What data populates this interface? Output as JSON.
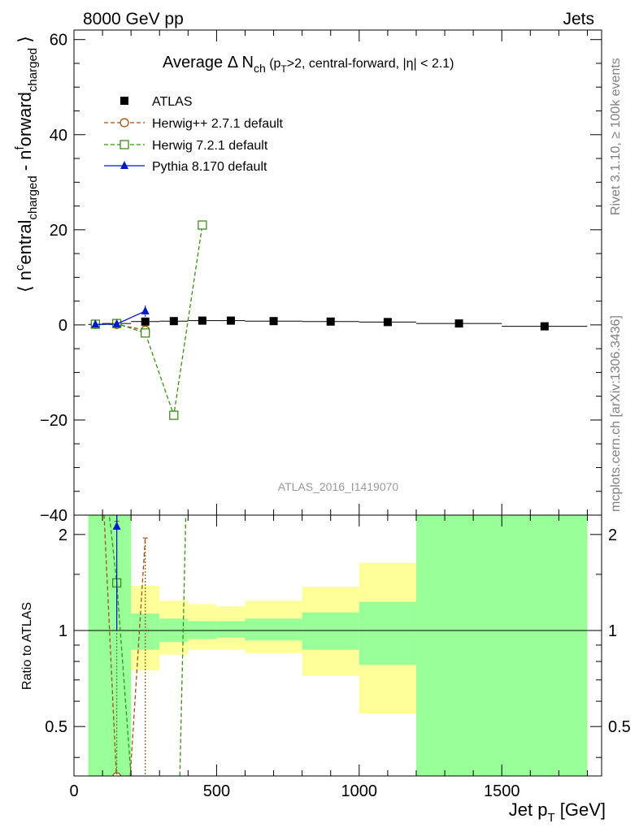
{
  "header": {
    "left": "8000 GeV pp",
    "right": "Jets"
  },
  "side_labels": {
    "rivet": "Rivet 3.1.10, ≥ 100k events",
    "mcplots": "mcplots.cern.ch [arXiv:1306.3436]"
  },
  "watermark": "ATLAS_2016_I1419070",
  "chart_data": [
    {
      "type": "scatter",
      "title": {
        "main": "Average Δ N",
        "main_sub": "ch",
        "cut_pre": " (p",
        "cut_sub": "T",
        "cut_post": ">2, central-forward, |η| < 2.1)"
      },
      "ylabel": {
        "p1": "⟨ n",
        "s1": "c",
        "p2": "entral",
        "s2": "charged",
        "p3": " - n",
        "s3": "f",
        "p4": "orward",
        "s4": "charged",
        "p5": " ⟩"
      },
      "xlim": [
        0,
        1850
      ],
      "ylim": [
        -40,
        62
      ],
      "yticks": [
        -40,
        -20,
        0,
        20,
        40,
        60
      ],
      "ytick_labels": [
        "−40",
        "−20",
        "0",
        "20",
        "40",
        "60"
      ],
      "legend_position": "top-left",
      "series": [
        {
          "name": "ATLAS",
          "color": "#000000",
          "marker": "filled-square",
          "line": "none",
          "x": [
            75,
            150,
            250,
            350,
            450,
            550,
            700,
            900,
            1100,
            1350,
            1650
          ],
          "xerr": [
            25,
            50,
            50,
            50,
            50,
            50,
            100,
            100,
            100,
            150,
            150
          ],
          "y": [
            0.1,
            0.3,
            0.7,
            0.8,
            0.9,
            0.9,
            0.8,
            0.7,
            0.6,
            0.3,
            -0.3
          ],
          "yerr": [
            0.3,
            0.3,
            0.3,
            0.3,
            0.3,
            0.3,
            0.3,
            0.3,
            0.3,
            0.4,
            0.6
          ]
        },
        {
          "name": "Herwig++ 2.7.1 default",
          "color": "#a0520f",
          "marker": "open-circle",
          "line": "dashed",
          "x": [
            75,
            150,
            250
          ],
          "y": [
            0.1,
            0.1,
            -1.1
          ],
          "yerr": [
            0.2,
            0.3,
            0.6
          ]
        },
        {
          "name": "Herwig 7.2.1 default",
          "color": "#3a8f16",
          "marker": "open-square",
          "line": "dashed",
          "x": [
            75,
            150,
            250,
            350,
            450
          ],
          "y": [
            0.15,
            0.3,
            -1.7,
            -19,
            21
          ],
          "yerr": [
            0.2,
            0.3,
            0.5,
            0.6,
            0.6
          ]
        },
        {
          "name": "Pythia 8.170 default",
          "color": "#0018cc",
          "marker": "filled-triangle",
          "line": "solid",
          "x": [
            75,
            150,
            250
          ],
          "y": [
            0.1,
            0.2,
            2.9
          ],
          "yerr": [
            0.2,
            0.3,
            1.2
          ]
        }
      ]
    },
    {
      "type": "line",
      "ylabel": "Ratio to ATLAS",
      "xlabel": {
        "main": "Jet p",
        "sub": "T",
        "post": " [GeV]"
      },
      "xlim": [
        0,
        1850
      ],
      "ylim": [
        0.35,
        2.3
      ],
      "xticks": [
        0,
        500,
        1000,
        1500
      ],
      "yticks": [
        0.5,
        1,
        2
      ],
      "ytick_labels": [
        "0.5",
        "1",
        "2"
      ],
      "bins": [
        50,
        100,
        200,
        300,
        400,
        500,
        600,
        800,
        1000,
        1200,
        1800
      ],
      "yellow_band_low": [
        0.3,
        0.78,
        0.75,
        0.84,
        0.87,
        0.87,
        0.85,
        0.72,
        0.55,
        0.3
      ],
      "yellow_band_high": [
        2.5,
        1.37,
        1.38,
        1.24,
        1.21,
        1.19,
        1.24,
        1.37,
        1.63,
        2.5
      ],
      "green_band_low": [
        0.3,
        0.3,
        0.87,
        0.92,
        0.94,
        0.95,
        0.93,
        0.87,
        0.78,
        0.3
      ],
      "green_band_high": [
        2.5,
        2.5,
        1.13,
        1.09,
        1.07,
        1.07,
        1.09,
        1.14,
        1.23,
        2.5
      ],
      "series": [
        {
          "name": "Herwig++ 2.7.1 default",
          "color": "#a0520f",
          "line": "dashed",
          "points": [
            [
              98,
              3.2
            ],
            [
              150,
              0.33
            ],
            [
              180,
              0.2
            ],
            [
              250,
              1.95
            ]
          ],
          "err_x": 250,
          "err_lo": 0.33,
          "err_hi": 1.95
        },
        {
          "name": "Herwig 7.2.1 default",
          "color": "#3a8f16",
          "line": "dashed",
          "points": [
            [
              110,
              3.0
            ],
            [
              150,
              1.41
            ],
            [
              220,
              0.2
            ]
          ],
          "points2": [
            [
              365,
              0.2
            ],
            [
              395,
              3.0
            ]
          ],
          "square_at": [
            150,
            1.41
          ],
          "err_x": 150,
          "err_lo": 0.3,
          "err_hi": 2.2
        },
        {
          "name": "Pythia 8.170 default",
          "color": "#0018cc",
          "line": "solid",
          "points": [
            [
              150,
              2.1
            ],
            [
              150,
              3.0
            ]
          ],
          "triangle_at": [
            150,
            2.12
          ],
          "err_x": 150,
          "err_lo": 1.0,
          "err_hi": 3.0
        }
      ]
    }
  ]
}
